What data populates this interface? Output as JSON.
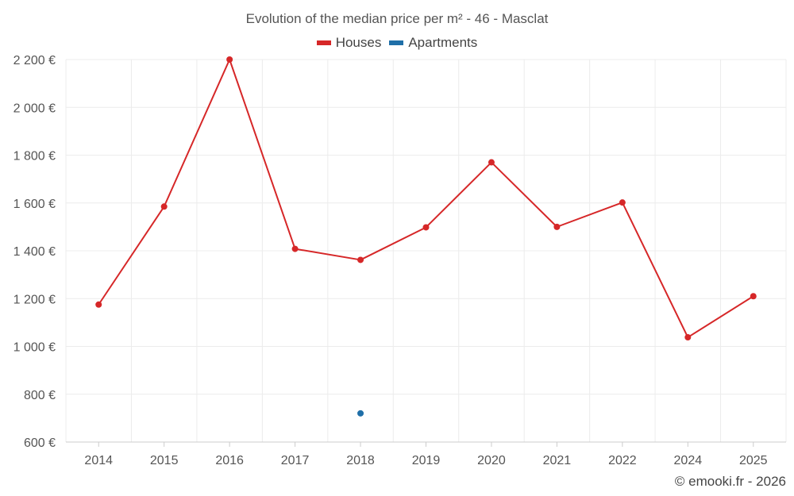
{
  "chart_data": {
    "type": "line",
    "title": "Evolution of the median price per m² - 46 - Masclat",
    "categories": [
      "2014",
      "2015",
      "2016",
      "2017",
      "2018",
      "2019",
      "2020",
      "2021",
      "2022",
      "2024",
      "2025"
    ],
    "series": [
      {
        "name": "Houses",
        "color": "#d62728",
        "values": [
          1175,
          1585,
          2200,
          1408,
          1362,
          1498,
          1770,
          1500,
          1602,
          1038,
          1210
        ]
      },
      {
        "name": "Apartments",
        "color": "#1f6fa8",
        "values": [
          null,
          null,
          null,
          null,
          720,
          null,
          null,
          null,
          null,
          null,
          null
        ]
      }
    ],
    "ylim": [
      600,
      2200
    ],
    "yticks": [
      600,
      800,
      1000,
      1200,
      1400,
      1600,
      1800,
      2000,
      2200
    ],
    "ytick_labels": [
      "600 €",
      "800 €",
      "1 000 €",
      "1 200 €",
      "1 400 €",
      "1 600 €",
      "1 800 €",
      "2 000 €",
      "2 200 €"
    ],
    "xlabel": "",
    "ylabel": "",
    "grid": true,
    "legend_position": "top-center"
  },
  "credit": "© emooki.fr - 2026"
}
